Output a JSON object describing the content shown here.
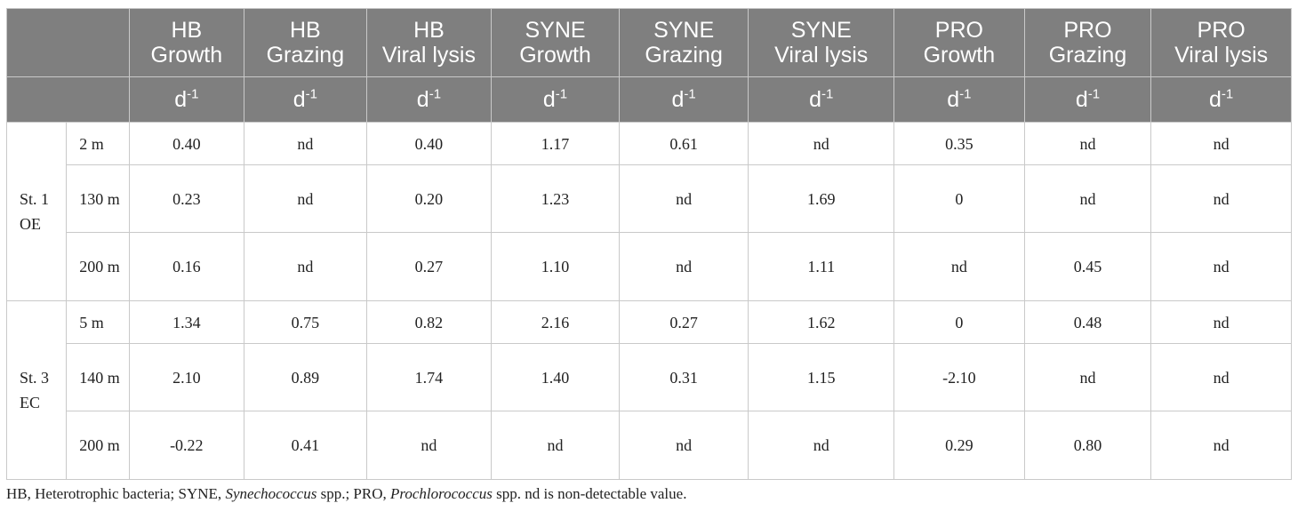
{
  "header": {
    "columns": [
      {
        "line1": "HB",
        "line2": "Growth"
      },
      {
        "line1": "HB",
        "line2": "Grazing"
      },
      {
        "line1": "HB",
        "line2": "Viral lysis"
      },
      {
        "line1": "SYNE",
        "line2": "Growth"
      },
      {
        "line1": "SYNE",
        "line2": "Grazing"
      },
      {
        "line1": "SYNE",
        "line2": "Viral lysis"
      },
      {
        "line1": "PRO",
        "line2": "Growth"
      },
      {
        "line1": "PRO",
        "line2": "Grazing"
      },
      {
        "line1": "PRO",
        "line2": "Viral lysis"
      }
    ],
    "unit_base": "d",
    "unit_exp": "-1"
  },
  "stations": [
    {
      "name": "St. 1 OE",
      "rows": [
        {
          "depth": "2 m",
          "values": [
            "0.40",
            "nd",
            "0.40",
            "1.17",
            "0.61",
            "nd",
            "0.35",
            "nd",
            "nd"
          ]
        },
        {
          "depth": "130 m",
          "values": [
            "0.23",
            "nd",
            "0.20",
            "1.23",
            "nd",
            "1.69",
            "0",
            "nd",
            "nd"
          ]
        },
        {
          "depth": "200 m",
          "values": [
            "0.16",
            "nd",
            "0.27",
            "1.10",
            "nd",
            "1.11",
            "nd",
            "0.45",
            "nd"
          ]
        }
      ]
    },
    {
      "name": "St. 3 EC",
      "rows": [
        {
          "depth": "5 m",
          "values": [
            "1.34",
            "0.75",
            "0.82",
            "2.16",
            "0.27",
            "1.62",
            "0",
            "0.48",
            "nd"
          ]
        },
        {
          "depth": "140 m",
          "values": [
            "2.10",
            "0.89",
            "1.74",
            "1.40",
            "0.31",
            "1.15",
            "-2.10",
            "nd",
            "nd"
          ]
        },
        {
          "depth": "200 m",
          "values": [
            "-0.22",
            "0.41",
            "nd",
            "nd",
            "nd",
            "nd",
            "0.29",
            "0.80",
            "nd"
          ]
        }
      ]
    }
  ],
  "footnote": {
    "p1": "HB, Heterotrophic bacteria; SYNE, ",
    "p2": "Synechococcus",
    "p3": " spp.; PRO, ",
    "p4": "Prochlorococcus",
    "p5": " spp. nd is non-detectable value."
  }
}
